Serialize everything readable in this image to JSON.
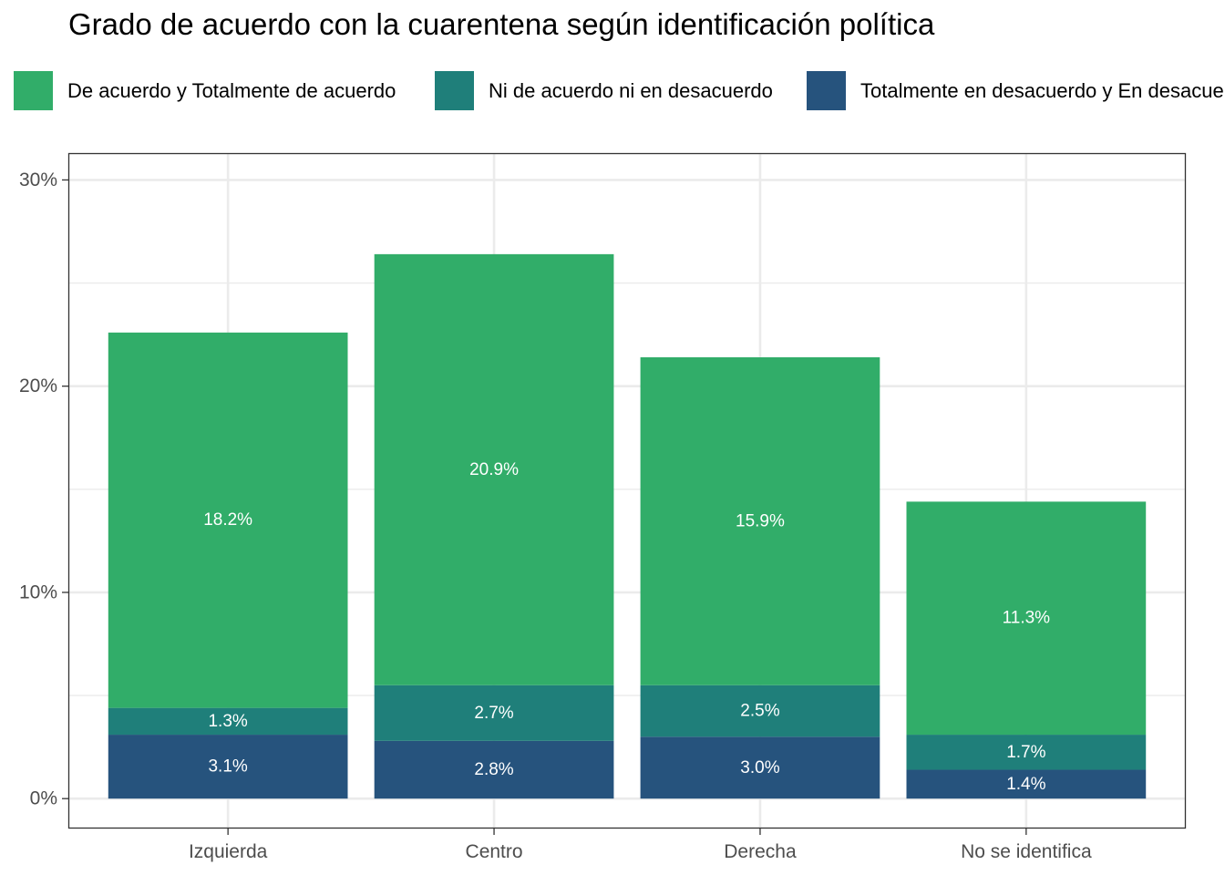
{
  "chart_data": {
    "type": "bar",
    "stacked": true,
    "title": "Grado de acuerdo con la cuarentena según identificación política",
    "xlabel": "",
    "ylabel": "",
    "categories": [
      "Izquierda",
      "Centro",
      "Derecha",
      "No se identifica"
    ],
    "series": [
      {
        "name": "De acuerdo y Totalmente de acuerdo",
        "color": "#31AD69",
        "values": [
          18.2,
          20.9,
          15.9,
          11.3
        ],
        "labels": [
          "18.2%",
          "20.9%",
          "15.9%",
          "11.3%"
        ]
      },
      {
        "name": "Ni de acuerdo ni en desacuerdo",
        "color": "#1F7F7A",
        "values": [
          1.3,
          2.7,
          2.5,
          1.7
        ],
        "labels": [
          "1.3%",
          "2.7%",
          "2.5%",
          "1.7%"
        ]
      },
      {
        "name": "Totalmente en desacuerdo y En desacuerdo",
        "color": "#26537D",
        "values": [
          3.1,
          2.8,
          3.0,
          1.4
        ],
        "labels": [
          "3.1%",
          "2.8%",
          "3.0%",
          "1.4%"
        ]
      }
    ],
    "stack_order_bottom_to_top": [
      2,
      1,
      0
    ],
    "ylim": [
      -1.45,
      31.3
    ],
    "yticks": [
      0,
      10,
      20,
      30
    ],
    "ytick_labels": [
      "0%",
      "10%",
      "20%",
      "30%"
    ],
    "grid": true,
    "legend_position": "top"
  }
}
